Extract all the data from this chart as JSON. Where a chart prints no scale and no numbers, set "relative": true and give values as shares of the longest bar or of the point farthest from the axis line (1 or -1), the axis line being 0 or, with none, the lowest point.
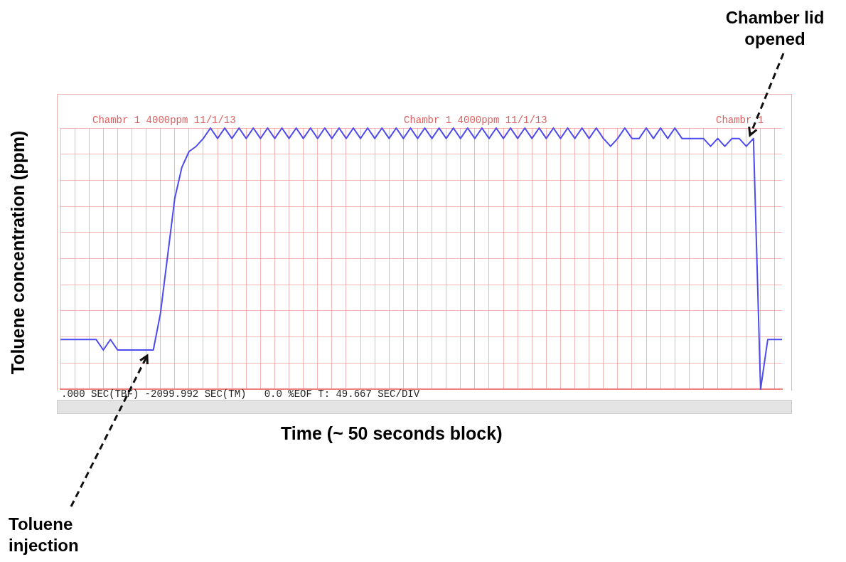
{
  "chart_data": {
    "type": "line",
    "relative": true,
    "xlabel": "Time (~ 50 seconds block)",
    "ylabel": "Toluene concentration (ppm)",
    "categories": [
      null,
      null,
      null,
      null,
      null,
      null,
      null,
      null,
      null,
      null,
      null,
      null,
      null,
      null,
      null,
      null,
      null,
      null,
      null,
      null,
      null,
      null,
      null,
      null,
      null,
      null,
      null,
      null,
      null,
      null,
      null,
      null,
      null,
      null,
      null,
      null,
      null,
      null,
      null,
      null,
      null,
      null,
      null,
      null,
      null,
      null,
      null,
      null,
      null,
      null,
      null,
      null,
      null,
      null,
      null,
      null,
      null,
      null,
      null,
      null,
      null,
      null,
      null,
      null,
      null,
      null,
      null,
      null,
      null,
      null,
      null,
      null,
      null,
      null,
      null,
      null,
      null,
      null,
      null,
      null,
      null,
      null,
      null,
      null,
      null,
      null,
      null,
      null,
      null,
      null,
      null,
      null,
      null,
      null,
      null,
      null,
      null,
      null,
      null,
      null,
      null,
      null
    ],
    "series": [
      {
        "color": "#4b4bf0",
        "values": [
          0.19,
          0.19,
          0.19,
          0.19,
          0.19,
          0.19,
          0.15,
          0.19,
          0.15,
          0.15,
          0.15,
          0.15,
          0.15,
          0.15,
          0.29,
          0.51,
          0.73,
          0.85,
          0.91,
          0.93,
          0.96,
          1,
          0.96,
          1,
          0.96,
          1,
          0.96,
          1,
          0.96,
          1,
          0.96,
          1,
          0.96,
          1,
          0.96,
          1,
          0.96,
          1,
          0.96,
          1,
          0.96,
          1,
          0.96,
          1,
          0.96,
          1,
          0.96,
          1,
          0.96,
          1,
          0.96,
          1,
          0.96,
          1,
          0.96,
          1,
          0.96,
          1,
          0.96,
          1,
          0.96,
          1,
          0.96,
          1,
          0.96,
          1,
          0.96,
          1,
          0.96,
          1,
          0.96,
          1,
          0.96,
          1,
          0.96,
          1,
          0.96,
          0.93,
          0.96,
          1,
          0.96,
          0.96,
          1,
          0.96,
          1,
          0.96,
          1,
          0.96,
          0.96,
          0.96,
          0.96,
          0.93,
          0.96,
          0.93,
          0.96,
          0.96,
          0.93,
          0.96,
          0,
          0.19,
          0.19,
          0.19
        ]
      }
    ],
    "grid": true,
    "legend": false,
    "marker": "none",
    "line_style": "solid",
    "annotations": [
      "Chambr 1 4000ppm 11/1/13",
      "Chambr 1 4000ppm 11/1/13",
      "Chambr 1",
      ".000 SEC(TBF) -2099.992 SEC(TM)   0.0 %EOF T: 49.667 SEC/DIV",
      "Toluene injection",
      "Chamber lid opened"
    ]
  }
}
